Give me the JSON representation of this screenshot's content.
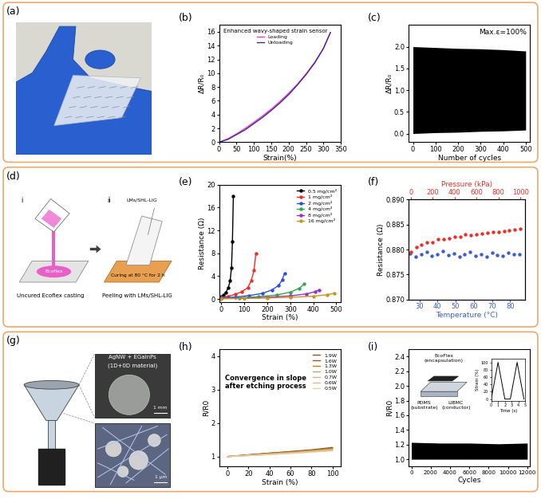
{
  "chart_data": [
    {
      "title": "(b)",
      "type": "line",
      "xlabel": "Strain(%)",
      "ylabel": "ΔR/R₀",
      "legend_title": "Enhanced wavy-shaped strain sensor",
      "legend": "upper left",
      "x": [
        0,
        25,
        50,
        75,
        100,
        125,
        150,
        175,
        200,
        225,
        250,
        275,
        300,
        320
      ],
      "series": [
        {
          "name": "Loading",
          "color": "#e03cc8",
          "values": [
            0,
            0.5,
            1.2,
            2.0,
            2.9,
            3.8,
            4.8,
            5.9,
            7.1,
            8.4,
            9.9,
            11.6,
            13.6,
            15.9
          ]
        },
        {
          "name": "Unloading",
          "color": "#4b2a8c",
          "values": [
            0,
            0.4,
            1.1,
            1.8,
            2.7,
            3.6,
            4.6,
            5.7,
            6.9,
            8.3,
            9.8,
            11.5,
            13.6,
            15.9
          ]
        }
      ],
      "xlim": [
        0,
        350
      ],
      "ylim": [
        0,
        17
      ],
      "xticks": [
        0,
        50,
        100,
        150,
        200,
        250,
        300,
        350
      ],
      "yticks": [
        0,
        2,
        4,
        6,
        8,
        10,
        12,
        14,
        16
      ]
    },
    {
      "title": "(c)",
      "type": "band",
      "xlabel": "Number of cycles",
      "ylabel": "ΔR/R₀",
      "annotation": "Max.ε=100%",
      "color": "#000000",
      "x": [
        0,
        100,
        200,
        300,
        400,
        500
      ],
      "upper": [
        2.0,
        1.98,
        1.96,
        1.95,
        1.93,
        1.9
      ],
      "lower": [
        0.0,
        0.02,
        0.03,
        0.05,
        0.06,
        0.08
      ],
      "xlim": [
        -20,
        520
      ],
      "ylim": [
        -0.2,
        2.5
      ],
      "xticks": [
        0,
        100,
        200,
        300,
        400,
        500
      ],
      "yticks": [
        {
          "value": 0,
          "label": "0.0"
        },
        0.5,
        {
          "value": 1,
          "label": "1.0"
        },
        1.5,
        {
          "value": 2,
          "label": "2.0"
        }
      ]
    },
    {
      "title": "(e)",
      "type": "line",
      "xlabel": "Strain (%)",
      "ylabel": "Resistance (Ω)",
      "legend": "upper right",
      "marker": "circle",
      "xlim": [
        -10,
        520
      ],
      "ylim": [
        -0.5,
        20
      ],
      "xticks": [
        0,
        100,
        200,
        300,
        400,
        500
      ],
      "yticks": [
        0,
        4,
        8,
        12,
        16,
        20
      ],
      "series": [
        {
          "name": "0.5 mg/cm²",
          "color": "#000000",
          "x": [
            0,
            10,
            20,
            30,
            38,
            44,
            48,
            52
          ],
          "values": [
            0.4,
            0.7,
            1.2,
            2.0,
            3.2,
            5.5,
            10,
            18
          ]
        },
        {
          "name": "1 mg/cm²",
          "color": "#e8312a",
          "x": [
            0,
            30,
            60,
            90,
            115,
            130,
            142,
            150
          ],
          "values": [
            0.3,
            0.5,
            0.8,
            1.3,
            2.0,
            3.2,
            5.0,
            8.0
          ]
        },
        {
          "name": "2 mg/cm²",
          "color": "#2f4fd8",
          "x": [
            0,
            60,
            120,
            180,
            220,
            250,
            265,
            275
          ],
          "values": [
            0.2,
            0.35,
            0.6,
            1.0,
            1.6,
            2.4,
            3.4,
            4.5
          ]
        },
        {
          "name": "4 mg/cm²",
          "color": "#2fa84f",
          "x": [
            0,
            80,
            160,
            240,
            300,
            340,
            360
          ],
          "values": [
            0.1,
            0.2,
            0.4,
            0.7,
            1.2,
            1.9,
            2.6
          ]
        },
        {
          "name": "8 mg/cm²",
          "color": "#9b30c8",
          "x": [
            0,
            100,
            200,
            300,
            370,
            410,
            425
          ],
          "values": [
            0.1,
            0.15,
            0.3,
            0.55,
            0.9,
            1.3,
            1.6
          ]
        },
        {
          "name": "16 mg/cm²",
          "color": "#c8961e",
          "x": [
            0,
            100,
            200,
            300,
            400,
            460,
            490
          ],
          "values": [
            0.05,
            0.1,
            0.18,
            0.3,
            0.5,
            0.75,
            1.0
          ]
        }
      ]
    },
    {
      "title": "(f)",
      "type": "line",
      "marker": "circle",
      "line_style": "none",
      "xlabel": "Temperature (°C)",
      "x2label": "Pressure (kPa)",
      "ylabel": "Resistance (Ω)",
      "xlim": [
        24,
        88
      ],
      "xticks": [
        30,
        40,
        50,
        60,
        70,
        80
      ],
      "x2lim": [
        -20,
        1040
      ],
      "x2ticks": [
        0,
        200,
        400,
        600,
        800,
        1000
      ],
      "ylim": [
        0.87,
        0.89
      ],
      "yticks": [
        {
          "value": 0.87,
          "label": "0.870"
        },
        0.875,
        {
          "value": 0.88,
          "label": "0.880"
        },
        0.885,
        {
          "value": 0.89,
          "label": "0.890"
        }
      ],
      "series": [
        {
          "color": "#e8312a",
          "axis": "x2",
          "x": [
            0,
            50,
            100,
            150,
            200,
            250,
            300,
            350,
            400,
            450,
            500,
            550,
            600,
            650,
            700,
            750,
            800,
            850,
            900,
            950,
            1000
          ],
          "values": [
            0.8795,
            0.8805,
            0.881,
            0.8815,
            0.8815,
            0.882,
            0.882,
            0.8822,
            0.8825,
            0.8825,
            0.883,
            0.8828,
            0.883,
            0.8832,
            0.8833,
            0.8835,
            0.8835,
            0.8837,
            0.8838,
            0.884,
            0.8842
          ]
        },
        {
          "color": "#3a5fcd",
          "x": [
            25,
            28,
            31,
            34,
            37,
            40,
            43,
            46,
            49,
            52,
            55,
            58,
            61,
            64,
            67,
            70,
            73,
            76,
            79,
            82,
            85
          ],
          "values": [
            0.8792,
            0.8785,
            0.879,
            0.8795,
            0.8788,
            0.879,
            0.8797,
            0.8789,
            0.8792,
            0.8786,
            0.8791,
            0.8796,
            0.8788,
            0.879,
            0.8785,
            0.8793,
            0.8789,
            0.8787,
            0.8794,
            0.879,
            0.8791
          ]
        }
      ]
    },
    {
      "title": "(h)",
      "type": "line",
      "xlabel": "Strain (%)",
      "ylabel": "R/R0",
      "annotation": "Convergence in slope\nafter etching process",
      "legend": "upper right",
      "x": [
        0,
        20,
        40,
        60,
        80,
        100
      ],
      "series": [
        {
          "name": "1.9W",
          "color": "#8b5a2b",
          "values": [
            1,
            1.05,
            1.1,
            1.15,
            1.2,
            1.27
          ]
        },
        {
          "name": "1.6W",
          "color": "#a0522d",
          "values": [
            1,
            1.05,
            1.1,
            1.14,
            1.19,
            1.25
          ]
        },
        {
          "name": "1.3W",
          "color": "#b8860b",
          "values": [
            1,
            1.04,
            1.09,
            1.13,
            1.18,
            1.24
          ]
        },
        {
          "name": "1.0W",
          "color": "#c9a66b",
          "values": [
            1,
            1.04,
            1.08,
            1.12,
            1.17,
            1.22
          ]
        },
        {
          "name": "0.7W",
          "color": "#d2b48c",
          "values": [
            1,
            1.03,
            1.07,
            1.11,
            1.15,
            1.2
          ]
        },
        {
          "name": "0.6W",
          "color": "#deb887",
          "values": [
            1,
            1.03,
            1.06,
            1.1,
            1.14,
            1.18
          ]
        },
        {
          "name": "0.5W",
          "color": "#e6cfa8",
          "values": [
            1,
            1.03,
            1.06,
            1.09,
            1.13,
            1.17
          ]
        }
      ],
      "xlim": [
        -8,
        108
      ],
      "ylim": [
        0.7,
        4.2
      ],
      "xticks": [
        0,
        20,
        40,
        60,
        80,
        100
      ],
      "yticks": [
        1,
        2,
        3,
        4
      ]
    },
    {
      "title": "(i)",
      "type": "band",
      "xlabel": "Cycles",
      "ylabel": "R/R0",
      "color": "#000000",
      "x": [
        0,
        3000,
        6000,
        9000,
        12000
      ],
      "upper": [
        1.23,
        1.22,
        1.22,
        1.21,
        1.22
      ],
      "lower": [
        1.0,
        1.0,
        1.0,
        1.0,
        1.0
      ],
      "xlim": [
        -300,
        12300
      ],
      "ylim": [
        0.9,
        2.5
      ],
      "xticks": [
        0,
        2000,
        4000,
        6000,
        8000,
        10000,
        12000
      ],
      "yticks": [
        {
          "value": 1,
          "label": "1.0"
        },
        1.2,
        1.4,
        1.6,
        1.8,
        {
          "value": 2,
          "label": "2.0"
        },
        2.2,
        2.4
      ],
      "annotations": [
        "EcoFlex\n(encapsulation)",
        "PDMS\n(substrate)",
        "LIBMC\n(conductor)"
      ],
      "inset": {
        "type": "line",
        "xlabel": "Time (s)",
        "ylabel": "Strain (%)",
        "color": "#000000",
        "x": [
          0,
          1,
          2,
          2.8,
          3.8,
          4.8
        ],
        "values": [
          0,
          100,
          0,
          0,
          100,
          0
        ],
        "xlim": [
          0,
          5
        ],
        "ylim": [
          -5,
          110
        ],
        "xticks": [
          0,
          1,
          2,
          3,
          4,
          5
        ],
        "yticks": [
          0,
          20,
          40,
          60,
          80,
          100
        ]
      }
    }
  ],
  "diagrams": [
    {
      "title": "(a)",
      "type": "photo"
    },
    {
      "title": "(d)",
      "type": "process",
      "steps": [
        {
          "label": "i",
          "caption": "Uncured Ecoflex casting",
          "material": "Ecoflex"
        },
        {
          "label": "ii",
          "caption": "Peeling with LMs/SHL-LIG",
          "material": "LMs/SHL-LIG",
          "note": "Curing at 80 °C for 2 h"
        }
      ]
    },
    {
      "title": "(g)",
      "type": "device",
      "material": "AgNW + EGaInPs",
      "dimension": "(1D+0D material)",
      "scale_bars": [
        "1 mm",
        "1 μm"
      ]
    }
  ]
}
